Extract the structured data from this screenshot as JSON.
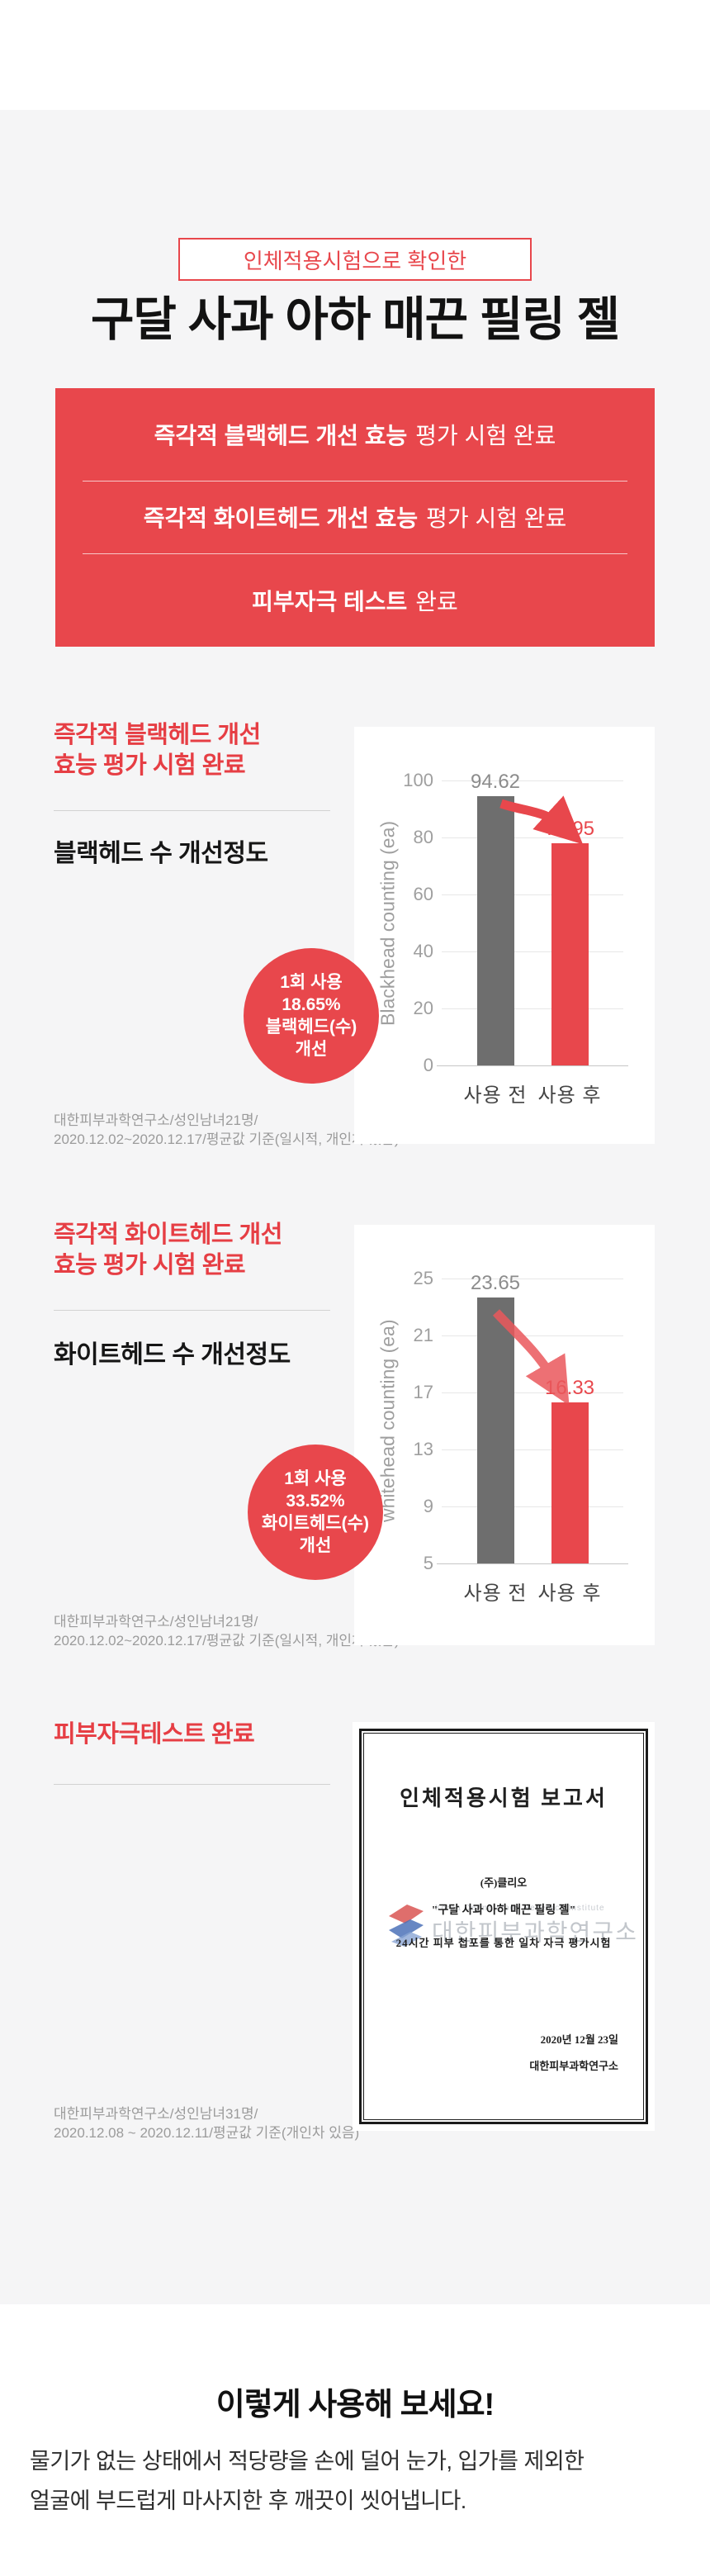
{
  "page": {
    "accent": "#e8474c",
    "background": "#f5f5f6"
  },
  "header": {
    "badge": "인체적용시험으로 확인한",
    "title": "구달 사과 아하 매끈 필링 젤",
    "claims": [
      {
        "bold": "즉각적 블랙헤드 개선 효능",
        "normal": "평가 시험 완료"
      },
      {
        "bold": "즉각적 화이트헤드 개선 효능",
        "normal": "평가 시험 완료"
      },
      {
        "bold": "피부자극 테스트",
        "normal": "완료"
      }
    ]
  },
  "sections": [
    {
      "heading_line1": "즉각적 블랙헤드 개선",
      "heading_line2": "효능 평가 시험 완료",
      "subheading": "블랙헤드 수 개선정도",
      "badge_lines": [
        "1회 사용",
        "18.65%",
        "블랙헤드(수)",
        "개선"
      ],
      "footnote_line1": "대한피부과학연구소/성인남녀21명/",
      "footnote_line2": "2020.12.02~2020.12.17/평균값 기준(일시적, 개인차 있음)"
    },
    {
      "heading_line1": "즉각적 화이트헤드 개선",
      "heading_line2": "효능 평가 시험 완료",
      "subheading": "화이트헤드 수 개선정도",
      "badge_lines": [
        "1회 사용",
        "33.52%",
        "화이트헤드(수)",
        "개선"
      ],
      "footnote_line1": "대한피부과학연구소/성인남녀21명/",
      "footnote_line2": "2020.12.02~2020.12.17/평균값 기준(일시적, 개인차 있음)"
    },
    {
      "heading": "피부자극테스트 완료",
      "footnote_line1": "대한피부과학연구소/성인남녀31명/",
      "footnote_line2": "2020.12.08 ~ 2020.12.11/평균값 기준(개인차 있음)"
    }
  ],
  "chart_data": [
    {
      "type": "bar",
      "categories": [
        "사용 전",
        "사용 후"
      ],
      "values": [
        94.62,
        77.95
      ],
      "value_labels": [
        "94.62",
        "77.95"
      ],
      "ylabel": "Blackhead counting (ea)",
      "ylim": [
        0,
        100
      ],
      "yticks": [
        0,
        20,
        40,
        60,
        80,
        100
      ],
      "bar_colors": [
        "#6e6e6e",
        "#e8474c"
      ],
      "label_colors": [
        "#8c8c8c",
        "#e8474c"
      ],
      "grid": true,
      "annotation": "decrease-arrow"
    },
    {
      "type": "bar",
      "categories": [
        "사용 전",
        "사용 후"
      ],
      "values": [
        23.65,
        16.33
      ],
      "value_labels": [
        "23.65",
        "16.33"
      ],
      "ylabel": "whitehead counting (ea)",
      "ylim": [
        5,
        25
      ],
      "yticks": [
        5,
        9,
        13,
        17,
        21,
        25
      ],
      "bar_colors": [
        "#6e6e6e",
        "#e8474c"
      ],
      "label_colors": [
        "#8c8c8c",
        "#e8474c"
      ],
      "grid": true,
      "annotation": "decrease-arrow"
    }
  ],
  "document": {
    "title": "인체적용시험 보고서",
    "company": "(주)클리오",
    "product": "\"구달 사과 아하 매끈 필링 젤\"",
    "test": "24시간 피부 첩포를 통한 일차 자극 평가시험",
    "watermark_en": "Korea Dermatology Research Institute",
    "watermark_ko": "대한피부과학연구소",
    "date": "2020년 12월 23일",
    "institute": "대한피부과학연구소"
  },
  "usage": {
    "title": "이렇게 사용해 보세요!",
    "body_line1": "물기가 없는 상태에서 적당량을 손에 덜어 눈가, 입가를 제외한",
    "body_line2": "얼굴에 부드럽게 마사지한 후 깨끗이 씻어냅니다."
  }
}
